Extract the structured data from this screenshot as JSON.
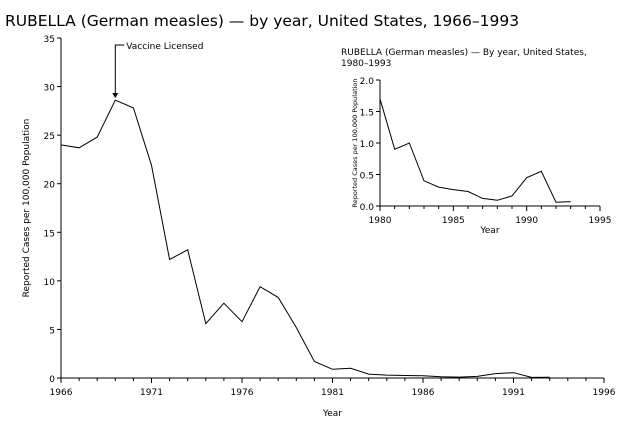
{
  "chart_data": [
    {
      "type": "line",
      "title": "RUBELLA (German measles) — by year, United States, 1966–1993",
      "xlabel": "Year",
      "ylabel": "Reported Cases per 100,000 Population",
      "xlim": [
        1966,
        1996
      ],
      "ylim": [
        0,
        35
      ],
      "xticks": [
        "1966",
        "1971",
        "1976",
        "1981",
        "1986",
        "1991",
        "1996"
      ],
      "yticks": [
        "0",
        "5",
        "10",
        "15",
        "20",
        "25",
        "30",
        "35"
      ],
      "grid": false,
      "annotation": {
        "text": "Vaccine Licensed",
        "x": 1969
      },
      "x": [
        1966,
        1967,
        1968,
        1969,
        1970,
        1971,
        1972,
        1973,
        1974,
        1975,
        1976,
        1977,
        1978,
        1979,
        1980,
        1981,
        1982,
        1983,
        1984,
        1985,
        1986,
        1987,
        1988,
        1989,
        1990,
        1991,
        1992,
        1993
      ],
      "values": [
        24.0,
        23.7,
        24.8,
        28.6,
        27.8,
        21.9,
        12.2,
        13.2,
        5.6,
        7.7,
        5.8,
        9.4,
        8.3,
        5.2,
        1.7,
        0.9,
        1.0,
        0.4,
        0.3,
        0.26,
        0.23,
        0.12,
        0.09,
        0.16,
        0.45,
        0.55,
        0.06,
        0.07
      ]
    },
    {
      "type": "line",
      "title": "RUBELLA (German measles) — By year, United States, 1980–1993",
      "title_lines": [
        "RUBELLA (German measles) — By year, United States,",
        "1980–1993"
      ],
      "xlabel": "Year",
      "ylabel": "Reported Cases per 100,000 Population",
      "xlim": [
        1980,
        1995
      ],
      "ylim": [
        0,
        2.0
      ],
      "xticks": [
        "1980",
        "1985",
        "1990",
        "1995"
      ],
      "yticks": [
        "0.0",
        "0.5",
        "1.0",
        "1.5",
        "2.0"
      ],
      "grid": false,
      "x": [
        1980,
        1981,
        1982,
        1983,
        1984,
        1985,
        1986,
        1987,
        1988,
        1989,
        1990,
        1991,
        1992,
        1993
      ],
      "values": [
        1.7,
        0.9,
        1.0,
        0.4,
        0.3,
        0.26,
        0.23,
        0.12,
        0.09,
        0.16,
        0.45,
        0.55,
        0.06,
        0.07
      ]
    }
  ]
}
